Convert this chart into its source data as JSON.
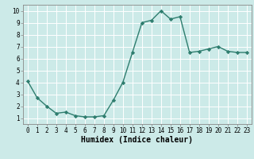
{
  "x": [
    0,
    1,
    2,
    3,
    4,
    5,
    6,
    7,
    8,
    9,
    10,
    11,
    12,
    13,
    14,
    15,
    16,
    17,
    18,
    19,
    20,
    21,
    22,
    23
  ],
  "y": [
    4.1,
    2.7,
    2.0,
    1.4,
    1.5,
    1.2,
    1.1,
    1.1,
    1.2,
    2.5,
    4.0,
    6.5,
    9.0,
    9.2,
    10.0,
    9.3,
    9.5,
    6.5,
    6.6,
    6.8,
    7.0,
    6.6,
    6.5,
    6.5
  ],
  "line_color": "#2e7d6e",
  "marker": "D",
  "marker_size": 2.2,
  "bg_color": "#cceae8",
  "grid_color": "#b0d8d5",
  "xlabel": "Humidex (Indice chaleur)",
  "xlim": [
    -0.5,
    23.5
  ],
  "ylim": [
    0.5,
    10.5
  ],
  "yticks": [
    1,
    2,
    3,
    4,
    5,
    6,
    7,
    8,
    9,
    10
  ],
  "xticks": [
    0,
    1,
    2,
    3,
    4,
    5,
    6,
    7,
    8,
    9,
    10,
    11,
    12,
    13,
    14,
    15,
    16,
    17,
    18,
    19,
    20,
    21,
    22,
    23
  ],
  "tick_fontsize": 5.5,
  "xlabel_fontsize": 7.0,
  "linewidth": 1.0
}
